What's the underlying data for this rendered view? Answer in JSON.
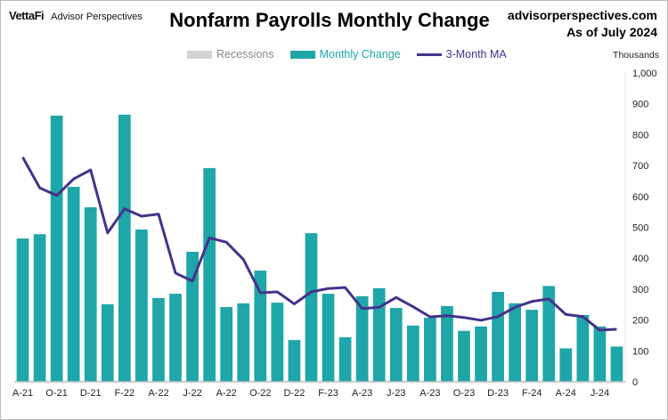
{
  "header": {
    "logo_brand": "VettaFi",
    "logo_sub": "Advisor Perspectives",
    "site": "advisorperspectives.com",
    "as_of": "As of July 2024"
  },
  "chart_data": {
    "type": "bar",
    "title": "Nonfarm Payrolls Monthly Change",
    "ylabel": "Thousands",
    "ylim": [
      0,
      1000
    ],
    "yticks": [
      "0",
      "100",
      "200",
      "300",
      "400",
      "500",
      "600",
      "700",
      "800",
      "900",
      "1,000"
    ],
    "ytick_values": [
      0,
      100,
      200,
      300,
      400,
      500,
      600,
      700,
      800,
      900,
      1000
    ],
    "xtick_labels": [
      "A-21",
      "O-21",
      "D-21",
      "F-22",
      "A-22",
      "J-22",
      "A-22",
      "O-22",
      "D-22",
      "F-23",
      "A-23",
      "J-23",
      "A-23",
      "O-23",
      "D-23",
      "F-24",
      "A-24",
      "J-24"
    ],
    "legend": [
      {
        "name": "Recessions",
        "color": "#d3d3d3"
      },
      {
        "name": "Monthly Change",
        "color": "#1fa6a8"
      },
      {
        "name": "3-Month MA",
        "color": "#46318c"
      }
    ],
    "legend_placement": "top-center",
    "series": [
      {
        "name": "Monthly Change",
        "type": "bar",
        "values": [
          464,
          478,
          862,
          631,
          565,
          251,
          865,
          493,
          271,
          285,
          421,
          692,
          242,
          254,
          360,
          256,
          135,
          481,
          285,
          144,
          277,
          303,
          239,
          182,
          207,
          245,
          165,
          179,
          291,
          254,
          233,
          310,
          108,
          216,
          179,
          114
        ]
      },
      {
        "name": "3-Month MA",
        "type": "line",
        "values": [
          727,
          628,
          603,
          657,
          686,
          482,
          560,
          536,
          543,
          352,
          326,
          466,
          452,
          396,
          288,
          291,
          252,
          291,
          302,
          305,
          237,
          241,
          273,
          243,
          210,
          214,
          208,
          199,
          211,
          241,
          260,
          268,
          218,
          211,
          167,
          170
        ]
      }
    ]
  }
}
